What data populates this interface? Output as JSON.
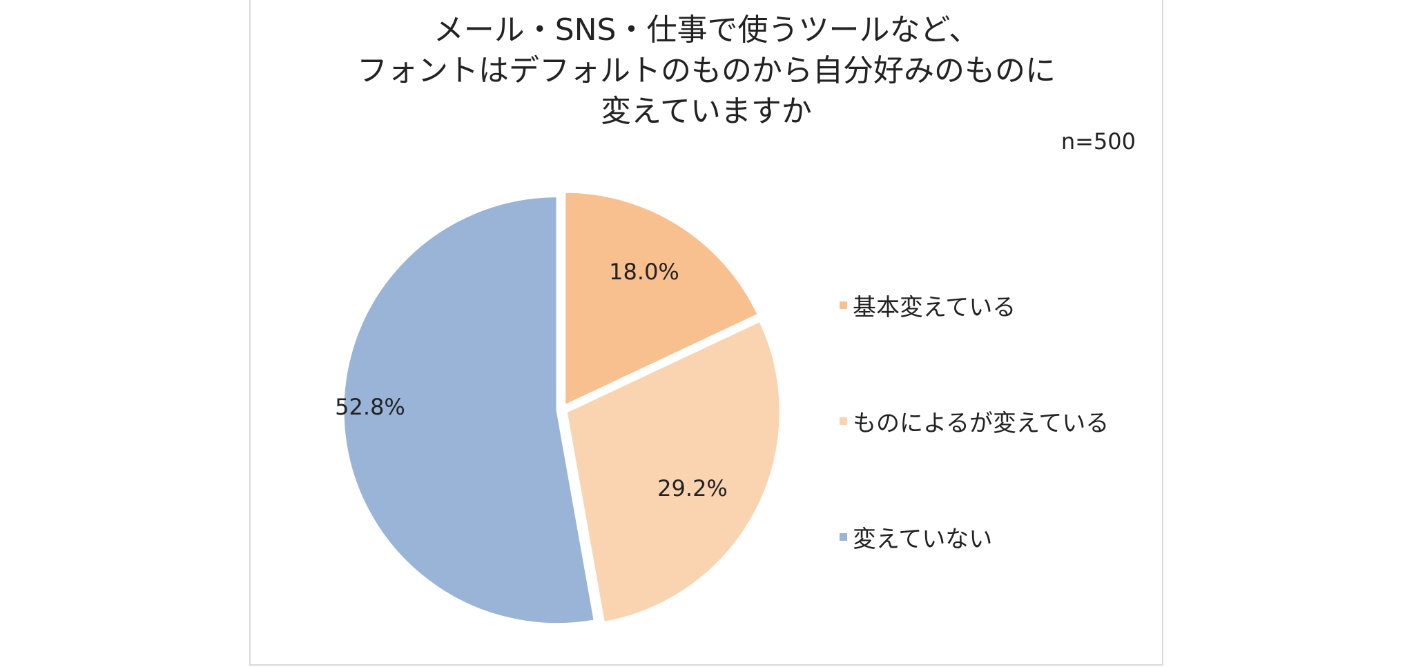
{
  "title_lines": [
    "メール・SNS・仕事で使うツールなど、",
    "フォントはデフォルトのものから自分好みのものに",
    "変えていますか"
  ],
  "sample_size": "n=500",
  "chart_data": {
    "type": "pie",
    "title": "メール・SNS・仕事で使うツールなど、フォントはデフォルトのものから自分好みのものに変えていますか",
    "slices": [
      {
        "label": "基本変えている",
        "value": 18.0,
        "value_label": "18.0%",
        "color": "#f9c08f"
      },
      {
        "label": "ものによるが変えている",
        "value": 29.2,
        "value_label": "29.2%",
        "color": "#fad4b1"
      },
      {
        "label": "変えていない",
        "value": 52.8,
        "value_label": "52.8%",
        "color": "#99b4d7"
      }
    ],
    "start": "12 o'clock",
    "direction": "clockwise",
    "legend_position": "right"
  }
}
